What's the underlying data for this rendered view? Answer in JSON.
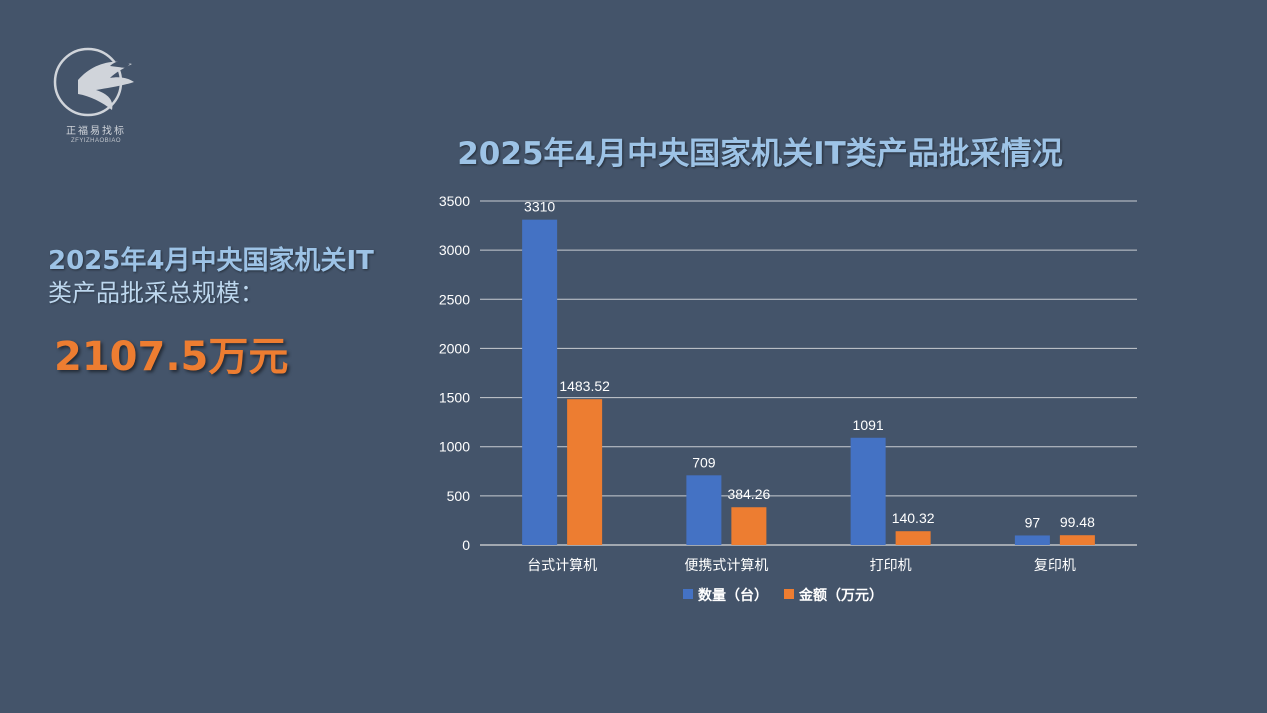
{
  "logo": {
    "brand_cn": "正福易找标",
    "brand_en": "ZFYIZHAOBIAO"
  },
  "summary": {
    "line1": "2025年4月中央国家机关IT",
    "line2": "类产品批采总规模：",
    "total": "2107.5万元"
  },
  "colors": {
    "background": "#44546a",
    "series_qty": "#4472c4",
    "series_amt": "#ed7d31",
    "title": "#9dc3e6"
  },
  "chart_data": {
    "type": "bar",
    "title": "2025年4月中央国家机关IT类产品批采情况",
    "categories": [
      "台式计算机",
      "便携式计算机",
      "打印机",
      "复印机"
    ],
    "series": [
      {
        "name": "数量（台）",
        "values": [
          3310,
          709,
          1091,
          97
        ],
        "labels": [
          "3310",
          "709",
          "1091",
          "97"
        ]
      },
      {
        "name": "金额（万元）",
        "values": [
          1483.52,
          384.26,
          140.32,
          99.48
        ],
        "labels": [
          "1483.52",
          "384.26",
          "140.32",
          "99.48"
        ]
      }
    ],
    "ylim": [
      0,
      3500
    ],
    "yticks": [
      "0",
      "500",
      "1000",
      "1500",
      "2000",
      "2500",
      "3000",
      "3500"
    ],
    "xlabel": "",
    "ylabel": "",
    "grid": true,
    "legend": "bottom"
  }
}
